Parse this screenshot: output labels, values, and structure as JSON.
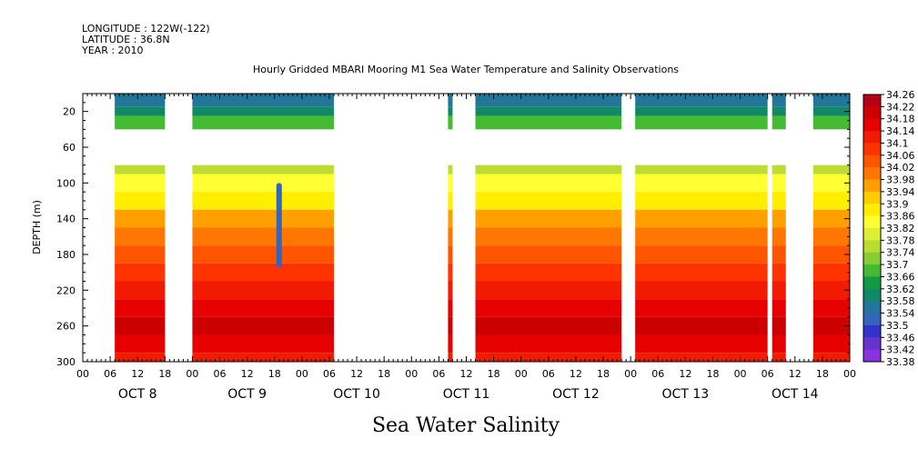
{
  "header": {
    "longitude": "LONGITUDE : 122W(-122)",
    "latitude": "LATITUDE : 36.8N",
    "year": "YEAR : 2010",
    "title": "Hourly Gridded MBARI Mooring M1 Sea Water Temperature and Salinity Observations"
  },
  "chart_data": {
    "type": "heatmap",
    "title": "Hourly Gridded MBARI Mooring M1 Sea Water Temperature and Salinity Observations",
    "xlabel": "",
    "ylabel": "DEPTH (m)",
    "bottom_label": "Sea Water Salinity",
    "x_range_hours": [
      0,
      168
    ],
    "y_range": [
      0,
      300
    ],
    "y_inverted": true,
    "y_ticks": [
      20,
      60,
      100,
      140,
      180,
      220,
      260,
      300
    ],
    "x_hour_labels": [
      "00",
      "06",
      "12",
      "18",
      "00",
      "06",
      "12",
      "18",
      "00",
      "06",
      "12",
      "18",
      "00",
      "06",
      "12",
      "18",
      "00",
      "06",
      "12",
      "18",
      "00",
      "06",
      "12",
      "18",
      "00",
      "06",
      "12",
      "18",
      "00"
    ],
    "x_day_labels": [
      "OCT  8",
      "OCT  9",
      "OCT 10",
      "OCT 11",
      "OCT 12",
      "OCT 13",
      "OCT 14"
    ],
    "colorbar": {
      "levels": [
        34.26,
        34.22,
        34.18,
        34.14,
        34.1,
        34.06,
        34.02,
        33.98,
        33.94,
        33.9,
        33.86,
        33.82,
        33.78,
        33.74,
        33.7,
        33.66,
        33.62,
        33.58,
        33.54,
        33.5,
        33.46,
        33.42,
        33.38
      ],
      "colors": [
        "#b3001a",
        "#cc0000",
        "#e60000",
        "#f21a00",
        "#ff3300",
        "#ff5500",
        "#ff7700",
        "#ffa000",
        "#ffcc00",
        "#ffee00",
        "#ffff33",
        "#ddee33",
        "#bbdd33",
        "#88cc33",
        "#44bb33",
        "#119944",
        "#118866",
        "#227799",
        "#3366bb",
        "#3333cc",
        "#6633cc",
        "#8833dd",
        "#aa44ee"
      ]
    },
    "depth_rows": [
      {
        "depth": 10,
        "salinity": 33.56
      },
      {
        "depth": 20,
        "salinity": 33.6
      },
      {
        "depth": 30,
        "salinity": 33.68
      },
      {
        "depth": 80,
        "salinity": 33.8
      },
      {
        "depth": 100,
        "salinity": 33.84
      },
      {
        "depth": 120,
        "salinity": 33.9
      },
      {
        "depth": 140,
        "salinity": 33.98
      },
      {
        "depth": 160,
        "salinity": 34.04
      },
      {
        "depth": 180,
        "salinity": 34.07
      },
      {
        "depth": 200,
        "salinity": 34.1
      },
      {
        "depth": 220,
        "salinity": 34.14
      },
      {
        "depth": 240,
        "salinity": 34.19
      },
      {
        "depth": 260,
        "salinity": 34.23
      },
      {
        "depth": 280,
        "salinity": 34.18
      },
      {
        "depth": 300,
        "salinity": 34.14
      }
    ],
    "data_segments_hours": [
      [
        7,
        18
      ],
      [
        24,
        55
      ],
      [
        80,
        81
      ],
      [
        86,
        118
      ],
      [
        121,
        150
      ],
      [
        151,
        154
      ],
      [
        160,
        168
      ]
    ],
    "low_salinity_plume": {
      "hour": 43,
      "depth_top": 100,
      "depth_bottom": 195,
      "salinity": 33.52
    }
  }
}
